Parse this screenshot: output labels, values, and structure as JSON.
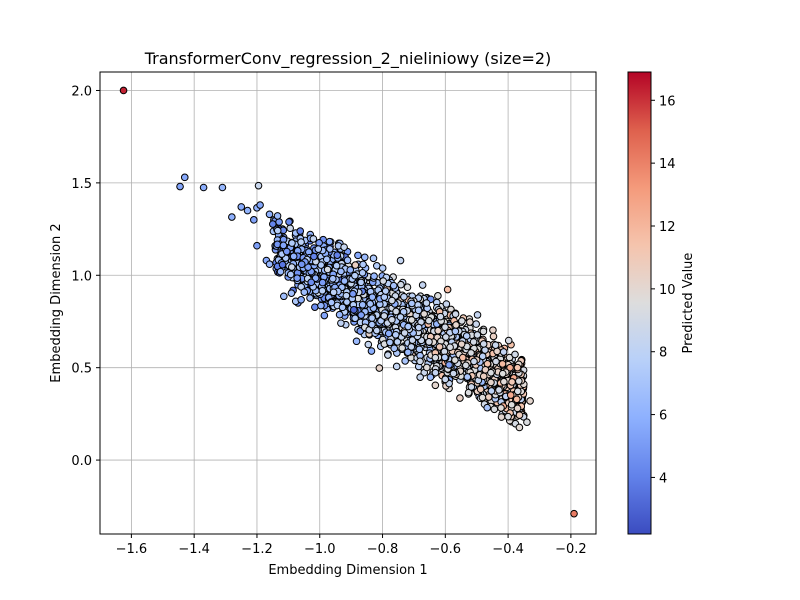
{
  "chart_data": {
    "type": "scatter",
    "title": "TransformerConv_regression_2_nieliniowy (size=2)",
    "xlabel": "Embedding Dimension 1",
    "ylabel": "Embedding Dimension 2",
    "xlim": [
      -1.7,
      -0.12
    ],
    "ylim": [
      -0.4,
      2.1
    ],
    "xticks": [
      -1.6,
      -1.4,
      -1.2,
      -1.0,
      -0.8,
      -0.6,
      -0.4,
      -0.2
    ],
    "xtick_labels": [
      "−1.6",
      "−1.4",
      "−1.2",
      "−1.0",
      "−0.8",
      "−0.6",
      "−0.4",
      "−0.2"
    ],
    "yticks": [
      0.0,
      0.5,
      1.0,
      1.5,
      2.0
    ],
    "ytick_labels": [
      "0.0",
      "0.5",
      "1.0",
      "1.5",
      "2.0"
    ],
    "grid": true,
    "colormap": "coolwarm",
    "colorbar": {
      "label": "Predicted Value",
      "range": [
        2.2,
        16.9
      ],
      "ticks": [
        4,
        6,
        8,
        10,
        12,
        14,
        16
      ],
      "tick_labels": [
        "4",
        "6",
        "8",
        "10",
        "12",
        "14",
        "16"
      ]
    },
    "marker_edge_color": "#000000",
    "points": [
      {
        "x": -1.625,
        "y": 2.0,
        "c": 16.3
      },
      {
        "x": -0.19,
        "y": -0.29,
        "c": 14.2
      },
      {
        "x": -1.43,
        "y": 1.53,
        "c": 5.6
      },
      {
        "x": -1.445,
        "y": 1.48,
        "c": 5.4
      },
      {
        "x": -1.37,
        "y": 1.475,
        "c": 5.8
      },
      {
        "x": -1.31,
        "y": 1.475,
        "c": 6.2
      },
      {
        "x": -1.195,
        "y": 1.485,
        "c": 8.5
      },
      {
        "x": -1.25,
        "y": 1.37,
        "c": 5.7
      },
      {
        "x": -1.2,
        "y": 1.365,
        "c": 6.0
      },
      {
        "x": -1.19,
        "y": 1.38,
        "c": 5.5
      },
      {
        "x": -1.28,
        "y": 1.315,
        "c": 5.9
      },
      {
        "x": -1.23,
        "y": 1.35,
        "c": 6.1
      },
      {
        "x": -1.21,
        "y": 1.3,
        "c": 5.3
      },
      {
        "x": -1.16,
        "y": 1.33,
        "c": 6.0
      },
      {
        "x": -1.2,
        "y": 1.16,
        "c": 5.2
      },
      {
        "x": -1.17,
        "y": 1.08,
        "c": 5.6
      },
      {
        "x": -1.16,
        "y": 1.06,
        "c": 6.3
      },
      {
        "x": -0.34,
        "y": 0.205,
        "c": 9.4
      },
      {
        "x": -0.33,
        "y": 0.32,
        "c": 10.1
      },
      {
        "x": -0.4,
        "y": 0.235,
        "c": 9.2
      },
      {
        "x": -0.37,
        "y": 0.5,
        "c": 11.3
      },
      {
        "x": -0.37,
        "y": 0.28,
        "c": 10.2
      }
    ],
    "cloud": {
      "description_of_series": "dense band of points from about x=-1.15 to x=-0.35",
      "count": 2600,
      "x_range": [
        -1.15,
        -0.35
      ],
      "center_line": {
        "slope": -0.97,
        "intercept": 0.04
      },
      "spread_y": 0.085,
      "color_at_x_min": 5.5,
      "color_at_x_max": 10.5,
      "color_noise": 1.2
    }
  }
}
